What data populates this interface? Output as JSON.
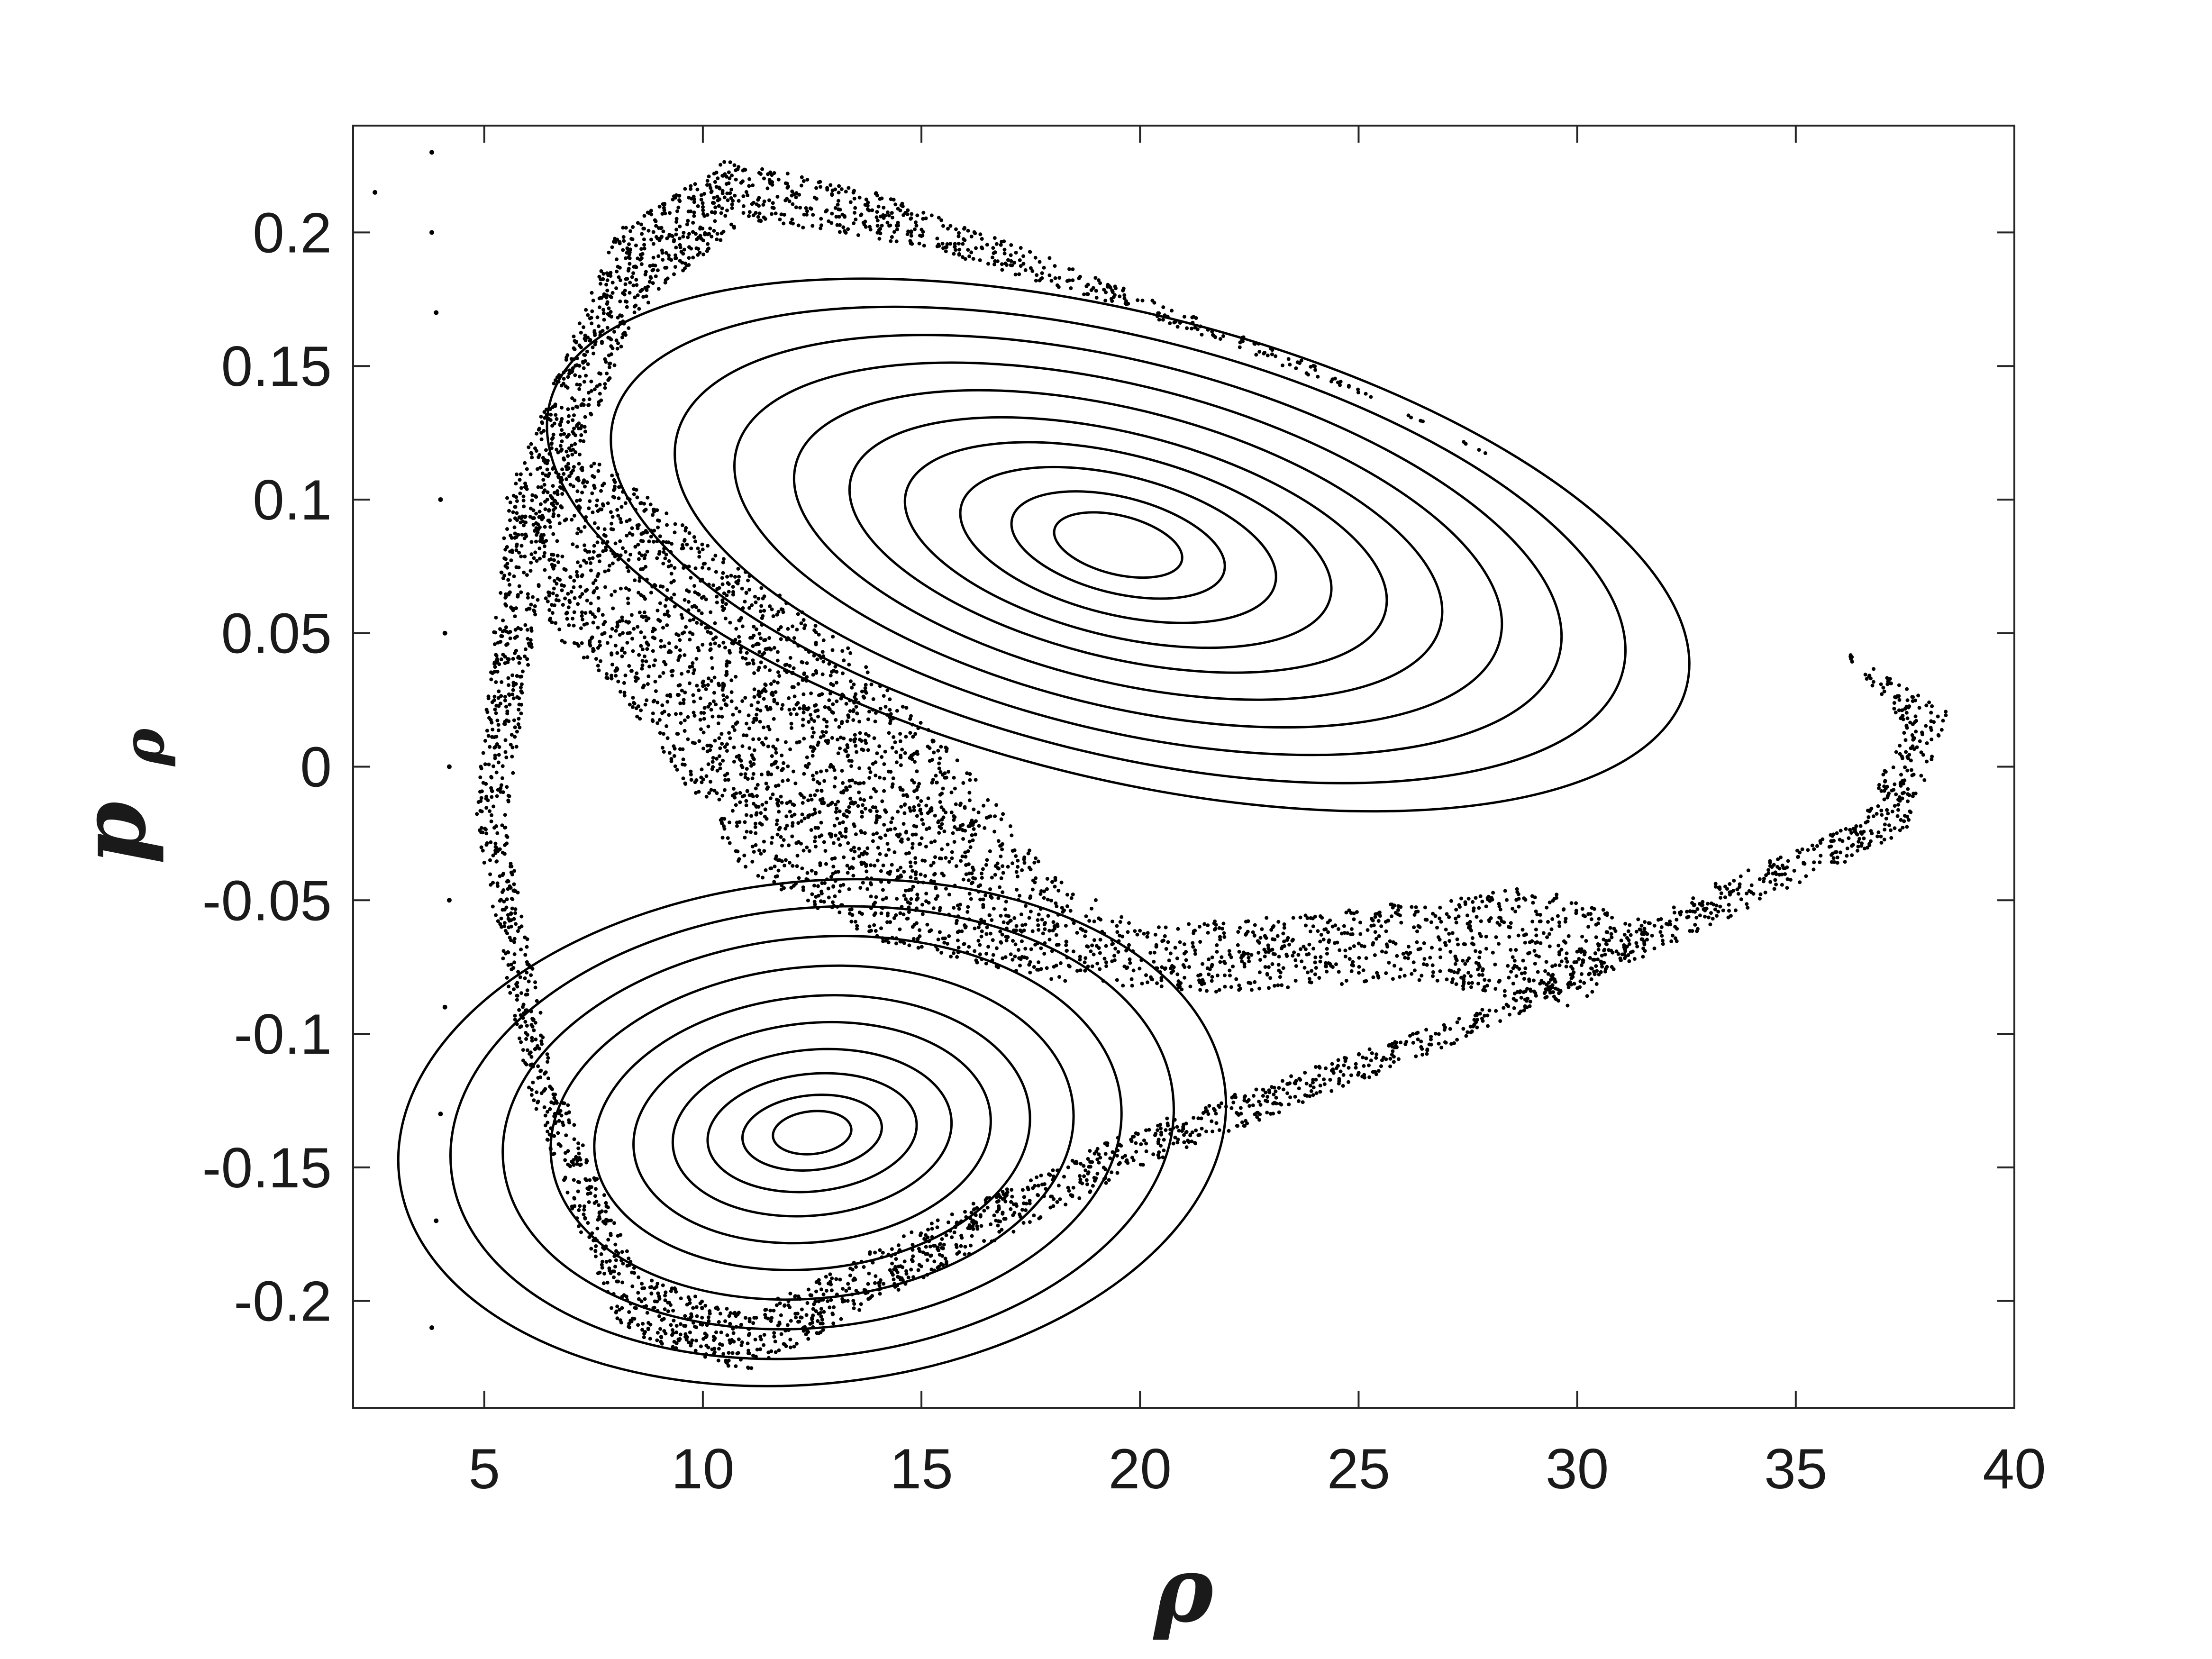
{
  "chart_data": {
    "type": "scatter",
    "title": "",
    "xlabel": "ρ",
    "ylabel": "p",
    "ylabel_subscript": "ρ",
    "xlim": [
      2,
      40
    ],
    "ylim": [
      -0.24,
      0.24
    ],
    "xticks": [
      5,
      10,
      15,
      20,
      25,
      30,
      35,
      40
    ],
    "xtick_labels": [
      "5",
      "10",
      "15",
      "20",
      "25",
      "30",
      "35",
      "40"
    ],
    "yticks": [
      0.2,
      0.15,
      0.1,
      0.05,
      0,
      -0.05,
      -0.1,
      -0.15,
      -0.2
    ],
    "ytick_labels": [
      "0.2",
      "0.15",
      "0.1",
      "0.05",
      "0",
      "-0.05",
      "-0.1",
      "-0.15",
      "-0.2"
    ],
    "grid": false,
    "legend": "none",
    "marker_color": "#000000",
    "series": [
      {
        "kind": "regular-orbits",
        "center": [
          19.5,
          0.083
        ],
        "radius_pairs": [
          [
            1.5,
            0.011
          ],
          [
            2.5,
            0.018
          ],
          [
            3.7,
            0.026
          ],
          [
            5.0,
            0.034
          ],
          [
            6.3,
            0.042
          ],
          [
            7.6,
            0.051
          ],
          [
            9.0,
            0.06
          ],
          [
            10.4,
            0.069
          ],
          [
            11.9,
            0.078
          ],
          [
            13.4,
            0.087
          ]
        ]
      },
      {
        "kind": "regular-orbits",
        "center": [
          12.5,
          -0.137
        ],
        "radius_pairs": [
          [
            0.9,
            0.008
          ],
          [
            1.6,
            0.014
          ],
          [
            2.4,
            0.022
          ],
          [
            3.2,
            0.031
          ],
          [
            4.1,
            0.041
          ],
          [
            5.0,
            0.051
          ],
          [
            6.0,
            0.062
          ],
          [
            7.1,
            0.073
          ],
          [
            8.3,
            0.084
          ],
          [
            9.5,
            0.094
          ]
        ]
      },
      {
        "kind": "chaotic-sea",
        "outer": [
          [
            10.5,
            0.227
          ],
          [
            14,
            0.215
          ],
          [
            18,
            0.19
          ],
          [
            24,
            0.15
          ],
          [
            30,
            0.1
          ],
          [
            35,
            0.055
          ],
          [
            38.5,
            0.02
          ],
          [
            37.5,
            -0.025
          ],
          [
            33,
            -0.06
          ],
          [
            27,
            -0.105
          ],
          [
            20,
            -0.15
          ],
          [
            14,
            -0.2
          ],
          [
            11,
            -0.227
          ],
          [
            8,
            -0.21
          ],
          [
            6,
            -0.12
          ],
          [
            4.8,
            -0.02
          ],
          [
            5.5,
            0.1
          ],
          [
            8,
            0.2
          ]
        ],
        "inner": [
          [
            11,
            0.205
          ],
          [
            15,
            0.195
          ],
          [
            19,
            0.175
          ],
          [
            25,
            0.14
          ],
          [
            31,
            0.093
          ],
          [
            35.5,
            0.055
          ],
          [
            37.5,
            0.015
          ],
          [
            36.5,
            -0.02
          ],
          [
            33,
            -0.045
          ],
          [
            28,
            -0.09
          ],
          [
            20,
            -0.135
          ],
          [
            14,
            -0.18
          ],
          [
            11,
            -0.205
          ],
          [
            8.5,
            -0.19
          ],
          [
            6.5,
            -0.11
          ],
          [
            5.5,
            -0.02
          ],
          [
            6.5,
            0.09
          ],
          [
            8.5,
            0.17
          ]
        ]
      },
      {
        "kind": "chaotic-band",
        "points": [
          [
            6,
            0.1
          ],
          [
            7,
            0.12
          ],
          [
            8,
            0.11
          ],
          [
            10,
            0.085
          ],
          [
            13,
            0.05
          ],
          [
            16,
            0.0
          ],
          [
            18,
            -0.04
          ],
          [
            20,
            -0.06
          ],
          [
            24,
            -0.055
          ],
          [
            29,
            -0.045
          ],
          [
            32,
            -0.06
          ],
          [
            30,
            -0.09
          ],
          [
            26,
            -0.08
          ],
          [
            22,
            -0.085
          ],
          [
            18,
            -0.08
          ],
          [
            14,
            -0.065
          ],
          [
            11,
            -0.04
          ],
          [
            9.5,
            -0.005
          ],
          [
            8,
            0.03
          ],
          [
            6.5,
            0.05
          ]
        ]
      },
      {
        "kind": "scattered-points",
        "points": [
          [
            2.5,
            0.215
          ],
          [
            3.8,
            0.23
          ],
          [
            3.8,
            0.2
          ],
          [
            3.9,
            0.17
          ],
          [
            4.0,
            0.1
          ],
          [
            4.1,
            0.05
          ],
          [
            4.2,
            0.0
          ],
          [
            4.2,
            -0.05
          ],
          [
            4.1,
            -0.09
          ],
          [
            4.0,
            -0.13
          ],
          [
            3.9,
            -0.17
          ],
          [
            3.8,
            -0.21
          ]
        ]
      }
    ]
  }
}
